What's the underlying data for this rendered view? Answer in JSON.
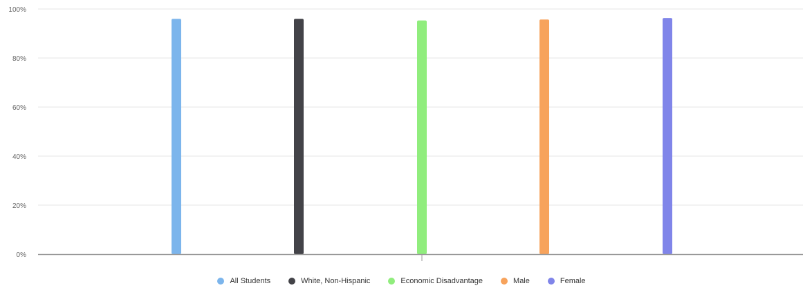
{
  "chart_data": {
    "type": "bar",
    "title": "",
    "xlabel": "",
    "ylabel": "",
    "ylim": [
      0,
      100
    ],
    "y_ticks": [
      "0%",
      "20%",
      "40%",
      "60%",
      "80%",
      "100%"
    ],
    "grid": true,
    "legend_position": "bottom",
    "categories": [
      ""
    ],
    "series": [
      {
        "name": "All Students",
        "values": [
          96
        ],
        "color": "#7cb5ec"
      },
      {
        "name": "White, Non-Hispanic",
        "values": [
          96
        ],
        "color": "#434348"
      },
      {
        "name": "Economic Disadvantage",
        "values": [
          95.3
        ],
        "color": "#90ed7d"
      },
      {
        "name": "Male",
        "values": [
          95.7
        ],
        "color": "#f7a35c"
      },
      {
        "name": "Female",
        "values": [
          96.3
        ],
        "color": "#8085e9"
      }
    ]
  }
}
